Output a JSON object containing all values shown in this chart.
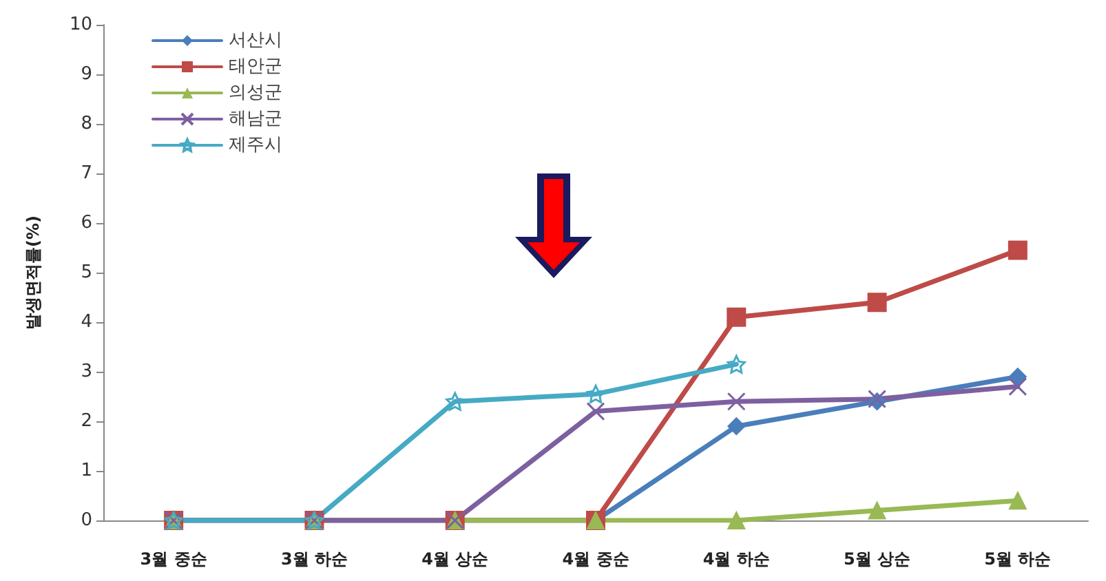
{
  "chart_data": {
    "type": "line",
    "ylabel": "발생면적률(%)",
    "categories": [
      "3월 중순",
      "3월 하순",
      "4월 상순",
      "4월 중순",
      "4월 하순",
      "5월 상순",
      "5월 하순"
    ],
    "series": [
      {
        "name": "서산시",
        "color": "#4a7ebb",
        "marker": "diamond",
        "values": [
          0,
          0,
          0,
          0,
          1.9,
          2.4,
          2.9
        ]
      },
      {
        "name": "태안군",
        "color": "#be4b48",
        "marker": "square",
        "values": [
          0,
          0,
          0,
          0,
          4.1,
          4.4,
          5.45
        ]
      },
      {
        "name": "의성군",
        "color": "#98b954",
        "marker": "triangle",
        "values": [
          0,
          0,
          0,
          0,
          0,
          0.2,
          0.4
        ]
      },
      {
        "name": "해남군",
        "color": "#7d60a0",
        "marker": "cross",
        "values": [
          0,
          0,
          0,
          2.2,
          2.4,
          2.45,
          2.7
        ]
      },
      {
        "name": "제주시",
        "color": "#46aac5",
        "marker": "star",
        "values": [
          0,
          0,
          2.4,
          2.55,
          3.15,
          null,
          null
        ]
      }
    ],
    "ylim": [
      0,
      10
    ],
    "yticks": [
      0,
      1,
      2,
      3,
      4,
      5,
      6,
      7,
      8,
      9,
      10
    ],
    "grid": false,
    "legend": "top left",
    "line_style": "solid"
  }
}
